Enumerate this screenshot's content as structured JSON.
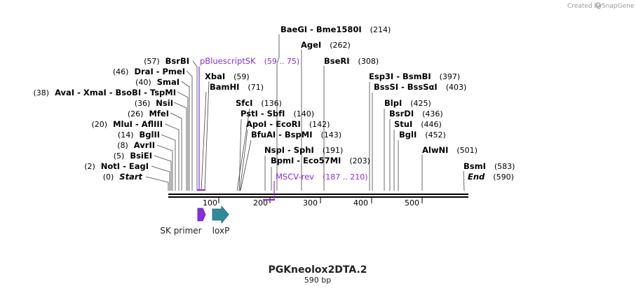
{
  "watermark": "Created by",
  "brand": "SnapGene",
  "title": "PGKneolox2DTA.2",
  "subtitle": "590 bp",
  "total_length": 590,
  "tick_labels": [
    "100",
    "200",
    "300",
    "400",
    "500"
  ],
  "colors": {
    "primer_feature": "#8a2be2",
    "loxP": "#2e8b9a",
    "sk_primer": "#8a2be2"
  },
  "left_labels": [
    {
      "pos": "(57)",
      "name": "BsrBI"
    },
    {
      "pos": "(46)",
      "name": "DraI  -  PmeI"
    },
    {
      "pos": "(40)",
      "name": "SmaI"
    },
    {
      "pos": "(38)",
      "name": "AvaI  -  XmaI  -  BsoBI  -  TspMI"
    },
    {
      "pos": "(36)",
      "name": "NsiI"
    },
    {
      "pos": "(26)",
      "name": "MfeI"
    },
    {
      "pos": "(20)",
      "name": "MluI  -  AflIII"
    },
    {
      "pos": "(14)",
      "name": "BglII"
    },
    {
      "pos": "(8)",
      "name": "AvrII"
    },
    {
      "pos": "(5)",
      "name": "BsiEI"
    },
    {
      "pos": "(2)",
      "name": "NotI  -  EagI"
    },
    {
      "pos": "(0)",
      "name": "Start"
    }
  ],
  "top_labels": [
    {
      "name": "BaeGI  -  Bme1580I",
      "pos": "(214)"
    },
    {
      "name": "AgeI",
      "pos": "(262)"
    },
    {
      "name": "BseRI",
      "pos": "(308)"
    },
    {
      "name": "Esp3I  -  BsmBI",
      "pos": "(397)"
    },
    {
      "name": "BssSI  -  BssSαI",
      "pos": "(403)"
    },
    {
      "name": "XbaI",
      "pos": "(59)"
    },
    {
      "name": "BamHI",
      "pos": "(71)"
    },
    {
      "name": "SfcI",
      "pos": "(136)"
    },
    {
      "name": "PstI  -  SbfI",
      "pos": "(140)"
    },
    {
      "name": "ApoI  -  EcoRI",
      "pos": "(142)"
    },
    {
      "name": "BfuAI  -  BspMI",
      "pos": "(143)"
    },
    {
      "name": "NspI  -  SphI",
      "pos": "(191)"
    },
    {
      "name": "BpmI  -  Eco57MI",
      "pos": "(203)"
    },
    {
      "name": "BlpI",
      "pos": "(425)"
    },
    {
      "name": "BsrDI",
      "pos": "(436)"
    },
    {
      "name": "StuI",
      "pos": "(446)"
    },
    {
      "name": "BglI",
      "pos": "(452)"
    },
    {
      "name": "AlwNI",
      "pos": "(501)"
    },
    {
      "name": "BsmI",
      "pos": "(583)"
    },
    {
      "name": "End",
      "pos": "(590)"
    }
  ],
  "primer_features": [
    {
      "name": "pBluescriptSK",
      "range": "(59 .. 75)"
    },
    {
      "name": "MSCV-rev",
      "range": "(187 .. 210)"
    }
  ],
  "bottom_features": [
    {
      "name": "SK primer"
    },
    {
      "name": "loxP"
    }
  ]
}
